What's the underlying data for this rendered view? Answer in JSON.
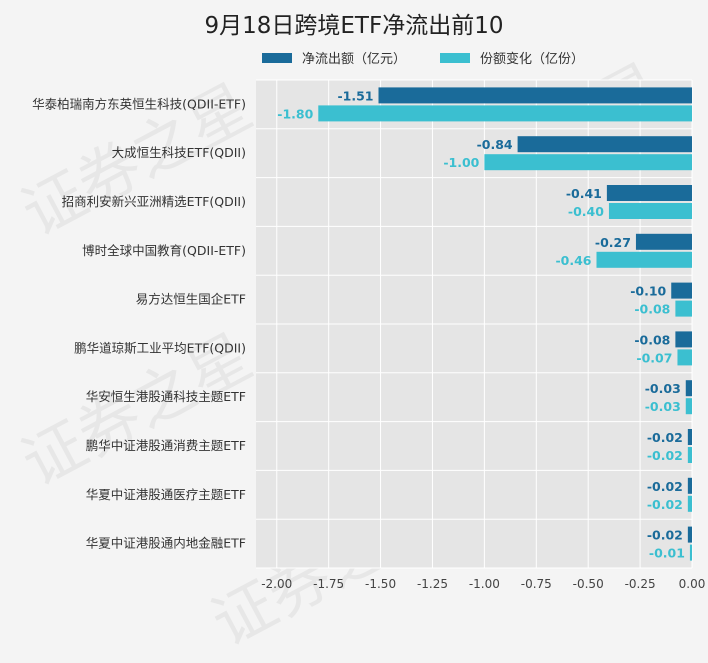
{
  "chart_data": {
    "type": "bar",
    "orientation": "horizontal",
    "title": "9月18日跨境ETF净流出前10",
    "categories": [
      "华泰柏瑞南方东英恒生科技(QDII-ETF)",
      "大成恒生科技ETF(QDII)",
      "招商利安新兴亚洲精选ETF(QDII)",
      "博时全球中国教育(QDII-ETF)",
      "易方达恒生国企ETF",
      "鹏华道琼斯工业平均ETF(QDII)",
      "华安恒生港股通科技主题ETF",
      "鹏华中证港股通消费主题ETF",
      "华夏中证港股通医疗主题ETF",
      "华夏中证港股通内地金融ETF"
    ],
    "series": [
      {
        "name": "净流出额（亿元）",
        "color": "#1a6b9a",
        "values": [
          -1.51,
          -0.84,
          -0.41,
          -0.27,
          -0.1,
          -0.08,
          -0.03,
          -0.02,
          -0.02,
          -0.02
        ],
        "labels": [
          "-1.51",
          "-0.84",
          "-0.41",
          "-0.27",
          "-0.10",
          "-0.08",
          "-0.03",
          "-0.02",
          "-0.02",
          "-0.02"
        ]
      },
      {
        "name": "份额变化（亿份）",
        "color": "#3bbfd0",
        "values": [
          -1.8,
          -1.0,
          -0.4,
          -0.46,
          -0.08,
          -0.07,
          -0.03,
          -0.02,
          -0.02,
          -0.01
        ],
        "labels": [
          "-1.80",
          "-1.00",
          "-0.40",
          "-0.46",
          "-0.08",
          "-0.07",
          "-0.03",
          "-0.02",
          "-0.02",
          "-0.01"
        ]
      }
    ],
    "xlim": [
      -2.1,
      0.0
    ],
    "xticks": [
      "-2.00",
      "-1.75",
      "-1.50",
      "-1.25",
      "-1.00",
      "-0.75",
      "-0.50",
      "-0.25",
      "0.00"
    ],
    "xtick_values": [
      -2.0,
      -1.75,
      -1.5,
      -1.25,
      -1.0,
      -0.75,
      -0.5,
      -0.25,
      0.0
    ],
    "grid": true,
    "legend_position": "top",
    "plot_background": "#e5e5e5"
  },
  "watermark": "证券之星"
}
